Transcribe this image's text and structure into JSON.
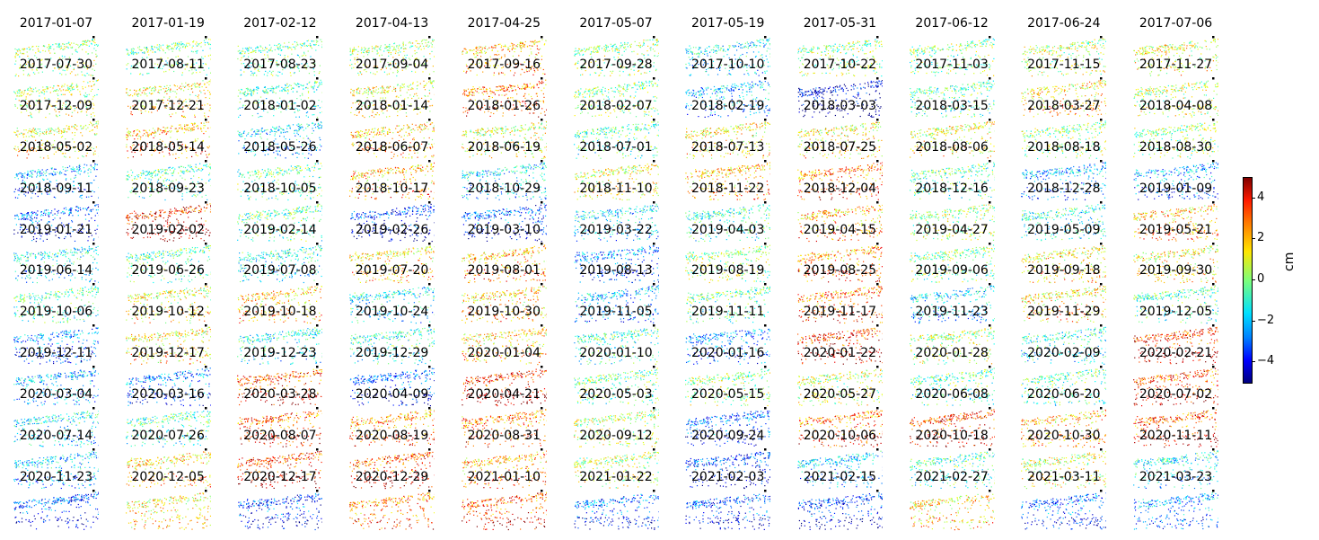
{
  "chart_data": {
    "type": "heatmap",
    "subtype": "small-multiples displacement maps",
    "panel_titles": [
      "2017-01-07",
      "2017-01-19",
      "2017-02-12",
      "2017-04-13",
      "2017-04-25",
      "2017-05-07",
      "2017-05-19",
      "2017-05-31",
      "2017-06-12",
      "2017-06-24",
      "2017-07-06",
      "2017-07-30",
      "2017-08-11",
      "2017-08-23",
      "2017-09-04",
      "2017-09-16",
      "2017-09-28",
      "2017-10-10",
      "2017-10-22",
      "2017-11-03",
      "2017-11-15",
      "2017-11-27",
      "2017-12-09",
      "2017-12-21",
      "2018-01-02",
      "2018-01-14",
      "2018-01-26",
      "2018-02-07",
      "2018-02-19",
      "2018-03-03",
      "2018-03-15",
      "2018-03-27",
      "2018-04-08",
      "2018-05-02",
      "2018-05-14",
      "2018-05-26",
      "2018-06-07",
      "2018-06-19",
      "2018-07-01",
      "2018-07-13",
      "2018-07-25",
      "2018-08-06",
      "2018-08-18",
      "2018-08-30",
      "2018-09-11",
      "2018-09-23",
      "2018-10-05",
      "2018-10-17",
      "2018-10-29",
      "2018-11-10",
      "2018-11-22",
      "2018-12-04",
      "2018-12-16",
      "2018-12-28",
      "2019-01-09",
      "2019-01-21",
      "2019-02-02",
      "2019-02-14",
      "2019-02-26",
      "2019-03-10",
      "2019-03-22",
      "2019-04-03",
      "2019-04-15",
      "2019-04-27",
      "2019-05-09",
      "2019-05-21",
      "2019-06-14",
      "2019-06-26",
      "2019-07-08",
      "2019-07-20",
      "2019-08-01",
      "2019-08-13",
      "2019-08-19",
      "2019-08-25",
      "2019-09-06",
      "2019-09-18",
      "2019-09-30",
      "2019-10-06",
      "2019-10-12",
      "2019-10-18",
      "2019-10-24",
      "2019-10-30",
      "2019-11-05",
      "2019-11-11",
      "2019-11-17",
      "2019-11-23",
      "2019-11-29",
      "2019-12-05",
      "2019-12-11",
      "2019-12-17",
      "2019-12-23",
      "2019-12-29",
      "2020-01-04",
      "2020-01-10",
      "2020-01-16",
      "2020-01-22",
      "2020-01-28",
      "2020-02-09",
      "2020-02-21",
      "2020-03-04",
      "2020-03-16",
      "2020-03-28",
      "2020-04-09",
      "2020-04-21",
      "2020-05-03",
      "2020-05-15",
      "2020-05-27",
      "2020-06-08",
      "2020-06-20",
      "2020-07-02",
      "2020-07-14",
      "2020-07-26",
      "2020-08-07",
      "2020-08-19",
      "2020-08-31",
      "2020-09-12",
      "2020-09-24",
      "2020-10-06",
      "2020-10-18",
      "2020-10-30",
      "2020-11-11",
      "2020-11-23",
      "2020-12-05",
      "2020-12-17",
      "2020-12-29",
      "2021-01-10",
      "2021-01-22",
      "2021-02-03",
      "2021-02-15",
      "2021-02-27",
      "2021-03-11",
      "2021-03-23"
    ],
    "grid": {
      "rows": 12,
      "cols": 11
    },
    "colormap": "jet",
    "colorbar": {
      "label": "cm",
      "range": [
        -5,
        5
      ],
      "ticks": [
        4,
        2,
        0,
        -2,
        -4
      ],
      "tick_labels": [
        "4",
        "2",
        "0",
        "−2",
        "−4"
      ]
    },
    "panel_mean_cm": [
      0.3,
      -0.2,
      -0.3,
      0.5,
      1.8,
      0.2,
      -1.2,
      0.2,
      0.0,
      0.6,
      1.0,
      0.6,
      1.2,
      -0.6,
      1.0,
      2.5,
      0.0,
      -1.8,
      -4.0,
      -0.4,
      1.5,
      0.6,
      1.0,
      2.0,
      -1.5,
      1.6,
      0.8,
      -0.5,
      1.2,
      1.2,
      1.0,
      0.2,
      0.2,
      -2.0,
      -0.5,
      -0.3,
      1.8,
      -1.4,
      1.0,
      1.8,
      2.5,
      -0.4,
      -2.0,
      -2.2,
      -2.8,
      3.5,
      -0.4,
      -3.2,
      -3.0,
      -1.5,
      -0.8,
      2.0,
      0.3,
      -0.8,
      1.8,
      -1.2,
      -0.4,
      -1.0,
      1.4,
      2.0,
      -2.5,
      0.2,
      2.2,
      0.0,
      1.4,
      1.2,
      -0.5,
      1.0,
      1.6,
      -1.2,
      1.6,
      -1.8,
      -0.4,
      2.5,
      -1.5,
      1.4,
      -0.6,
      -2.5,
      1.2,
      -1.0,
      -0.8,
      1.5,
      -0.6,
      -2.2,
      3.2,
      0.4,
      -1.0,
      3.2,
      -1.8,
      -2.5,
      3.0,
      -2.8,
      3.4,
      -0.2,
      0.2,
      0.6,
      -0.4,
      -0.4,
      3.0,
      -1.2,
      -0.6,
      2.8,
      2.2,
      2.4,
      0.6,
      -2.8,
      2.6,
      3.2,
      1.8,
      3.0,
      -1.6,
      1.6,
      3.2,
      3.0,
      2.0,
      0.6,
      -3.2,
      -1.6,
      -0.6,
      0.8,
      -1.2,
      -3.0,
      1.2,
      -3.2,
      2.4,
      3.0,
      -2.8,
      -3.0,
      -3.2,
      1.4,
      -2.8,
      -2.2
    ]
  }
}
